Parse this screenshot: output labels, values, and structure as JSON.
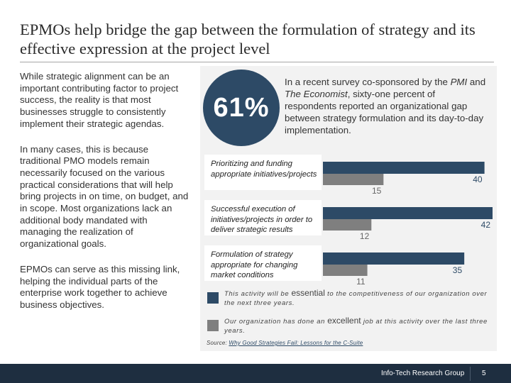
{
  "slide": {
    "title": "EPMOs help bridge the gap between the formulation of strategy and its effective expression at the project level",
    "paragraphs": [
      "While strategic alignment can be an important contributing factor to project success, the reality is that most businesses struggle to consistently implement their strategic agendas.",
      "In many cases, this is because traditional PMO models remain necessarily focused on the various practical considerations that will help bring projects in on time, on budget, and in scope. Most organizations lack an additional body mandated with managing the realization of organizational goals.",
      "EPMOs can serve as this missing link, helping the individual parts of the enterprise work together to achieve business objectives."
    ]
  },
  "stat": {
    "value": "61%",
    "text_before_pmi": "In a recent survey co-sponsored by the ",
    "pmi": "PMI",
    "text_and": " and ",
    "economist": "The Economist",
    "text_after": ", sixty-one percent of respondents reported an organizational gap between strategy formulation and its day-to-day implementation."
  },
  "colors": {
    "dark_bar": "#2d4a66",
    "gray_bar": "#7f7f7f",
    "circle": "#2d4a66",
    "footer": "#1e2e40"
  },
  "chart_data": {
    "type": "bar",
    "orientation": "horizontal",
    "categories": [
      "Prioritizing and funding appropriate initiatives/projects",
      "Successful execution of initiatives/projects in order to deliver strategic results",
      "Formulation of strategy appropriate for changing market conditions"
    ],
    "series": [
      {
        "name": "This activity will be essential to the competitiveness of our organization over the next three years.",
        "values": [
          40,
          42,
          35
        ],
        "color": "#2d4a66"
      },
      {
        "name": "Our organization has done an excellent job at this activity over the last three years.",
        "values": [
          15,
          12,
          11
        ],
        "color": "#7f7f7f"
      }
    ],
    "xlim": [
      0,
      42
    ],
    "grid": false,
    "legend_position": "bottom",
    "data_labels": true
  },
  "legend": {
    "essential_before": "This activity will be ",
    "essential_word": "essential",
    "essential_after": " to the competitiveness of our organization over the next three years.",
    "excellent_before": "Our organization has done an ",
    "excellent_word": "excellent",
    "excellent_after": " job at this activity over the last three years."
  },
  "source": {
    "prefix": "Source: ",
    "link": "Why Good Strategies Fail: Lessons for the C-Suite"
  },
  "footer": {
    "company": "Info-Tech Research Group",
    "page": "5"
  }
}
